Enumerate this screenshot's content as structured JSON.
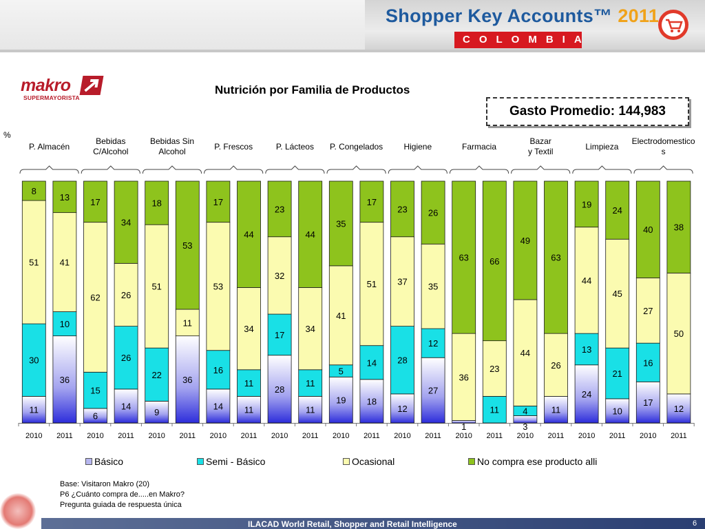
{
  "header": {
    "title": "Shopper Key Accounts™",
    "year": "2011",
    "country": "COLOMBIA"
  },
  "logo": {
    "brand": "makro",
    "sub": "SUPERMAYORISTA"
  },
  "title": "Nutrición por Familia de Productos",
  "gasto": "Gasto Promedio: 144,983",
  "unit_label": "%",
  "categories": [
    "P. Almacén",
    "Bebidas\nC/Alcohol",
    "Bebidas Sin\nAlcohol",
    "P. Frescos",
    "P. Lácteos",
    "P. Congelados",
    "Higiene",
    "Farmacia",
    "Bazar\ny Textil",
    "Limpieza",
    "Electrodomestico\ns"
  ],
  "colors": {
    "basico": "#b7b7f0",
    "semi_basico": "#19e0e6",
    "ocasional": "#fbfbb0",
    "no_compra": "#8ec31d"
  },
  "chart_data": {
    "type": "bar",
    "stacked": true,
    "normalized": true,
    "x": [
      "2010",
      "2011",
      "2010",
      "2011",
      "2010",
      "2011",
      "2010",
      "2011",
      "2010",
      "2011",
      "2010",
      "2011",
      "2010",
      "2011",
      "2010",
      "2011",
      "2010",
      "2011",
      "2010",
      "2011",
      "2010",
      "2011"
    ],
    "groups": [
      "P. Almacén",
      "Bebidas C/Alcohol",
      "Bebidas Sin Alcohol",
      "P. Frescos",
      "P. Lácteos",
      "P. Congelados",
      "Higiene",
      "Farmacia",
      "Bazar y Textil",
      "Limpieza",
      "Electrodomesticos"
    ],
    "series": [
      {
        "name": "Básico",
        "color": "#b7b7f0",
        "values": [
          11,
          36,
          6,
          14,
          9,
          36,
          14,
          11,
          28,
          11,
          19,
          18,
          12,
          27,
          1,
          0,
          3,
          11,
          24,
          10,
          17,
          12
        ]
      },
      {
        "name": "Semi - Básico",
        "color": "#19e0e6",
        "values": [
          30,
          10,
          15,
          26,
          22,
          0,
          16,
          11,
          17,
          11,
          5,
          14,
          28,
          12,
          0,
          11,
          4,
          0,
          13,
          21,
          16,
          0
        ]
      },
      {
        "name": "Ocasional",
        "color": "#fbfbb0",
        "values": [
          51,
          41,
          62,
          26,
          51,
          11,
          53,
          34,
          32,
          34,
          41,
          51,
          37,
          35,
          36,
          23,
          44,
          26,
          44,
          45,
          27,
          50
        ]
      },
      {
        "name": "No compra ese producto alli",
        "color": "#8ec31d",
        "values": [
          8,
          13,
          17,
          34,
          18,
          53,
          17,
          44,
          23,
          44,
          35,
          17,
          23,
          26,
          63,
          66,
          49,
          63,
          19,
          24,
          40,
          38
        ]
      }
    ],
    "ylim": [
      0,
      100
    ]
  },
  "legend": [
    {
      "key": "basico",
      "label": "Básico"
    },
    {
      "key": "semi_basico",
      "label": "Semi - Básico"
    },
    {
      "key": "ocasional",
      "label": "Ocasional"
    },
    {
      "key": "no_compra",
      "label": "No compra ese producto alli"
    }
  ],
  "footnotes": [
    "Base: Visitaron Makro (20)",
    "P6 ¿Cuánto compra de.....en Makro?",
    "Pregunta guiada de respuesta única"
  ],
  "footer": {
    "text": "ILACAD World Retail, Shopper and Retail Intelligence",
    "page": "6"
  }
}
